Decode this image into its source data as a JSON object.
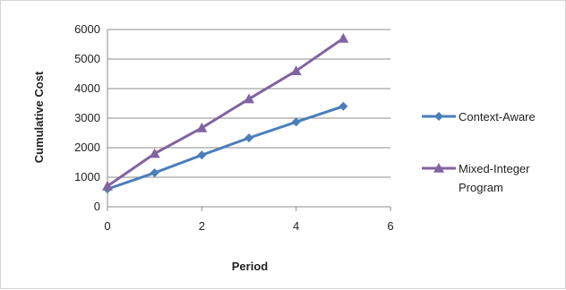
{
  "chart_data": {
    "type": "line",
    "title": "",
    "xlabel": "Period",
    "ylabel": "Cumulative Cost",
    "xlim": [
      0,
      6
    ],
    "ylim": [
      0,
      6000
    ],
    "x_ticks": [
      "0",
      "2",
      "4",
      "6"
    ],
    "y_ticks": [
      "0",
      "1000",
      "2000",
      "3000",
      "4000",
      "5000",
      "6000"
    ],
    "grid": "horizontal",
    "legend_position": "right",
    "series": [
      {
        "name": "Context-Aware",
        "legend_lines": [
          "Context-Aware"
        ],
        "color": "#4a7ebb",
        "marker": "diamond",
        "x": [
          0,
          1,
          2,
          3,
          4,
          5
        ],
        "y": [
          600,
          1150,
          1750,
          2330,
          2870,
          3400
        ]
      },
      {
        "name": "Mixed-Integer Program",
        "legend_lines": [
          "Mixed-Integer",
          "Program"
        ],
        "color": "#8064a2",
        "marker": "triangle",
        "x": [
          0,
          1,
          2,
          3,
          4,
          5
        ],
        "y": [
          700,
          1800,
          2670,
          3650,
          4600,
          5700
        ]
      }
    ]
  }
}
